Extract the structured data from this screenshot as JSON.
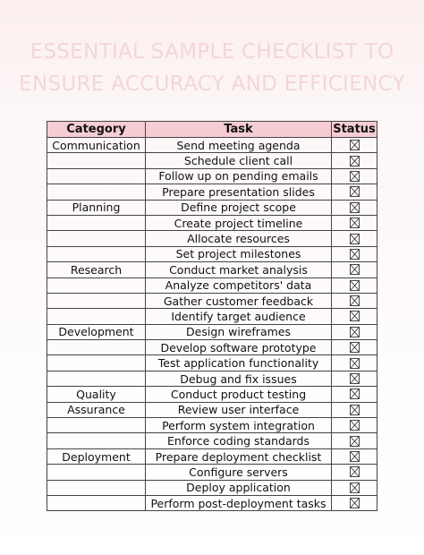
{
  "title": [
    "ESSENTIAL SAMPLE CHECKLIST TO",
    "ENSURE ACCURACY AND EFFICIENCY"
  ],
  "table": {
    "header": [
      "Category",
      "Task",
      "Status"
    ],
    "rows": [
      [
        "Communication",
        "Send meeting agenda"
      ],
      [
        null,
        "Schedule client call"
      ],
      [
        null,
        "Follow up on pending emails"
      ],
      [
        null,
        "Prepare presentation slides"
      ],
      [
        "Planning",
        "Define project scope"
      ],
      [
        null,
        "Create project timeline"
      ],
      [
        null,
        "Allocate resources"
      ],
      [
        null,
        "Set project milestones"
      ],
      [
        "Research",
        "Conduct market analysis"
      ],
      [
        null,
        "Analyze competitors' data"
      ],
      [
        null,
        "Gather customer feedback"
      ],
      [
        null,
        "Identify target audience"
      ],
      [
        "Development",
        "Design wireframes"
      ],
      [
        null,
        "Develop software prototype"
      ],
      [
        null,
        "Test application functionality"
      ],
      [
        null,
        "Debug and fix issues"
      ],
      [
        "Quality",
        "Conduct product testing"
      ],
      [
        "Assurance",
        "Review user interface"
      ],
      [
        null,
        "Perform system integration"
      ],
      [
        null,
        "Enforce coding standards"
      ],
      [
        "Deployment",
        "Prepare deployment checklist"
      ],
      [
        null,
        "Configure servers"
      ],
      [
        null,
        "Deploy application"
      ],
      [
        null,
        "Perform post-deployment tasks"
      ]
    ]
  }
}
